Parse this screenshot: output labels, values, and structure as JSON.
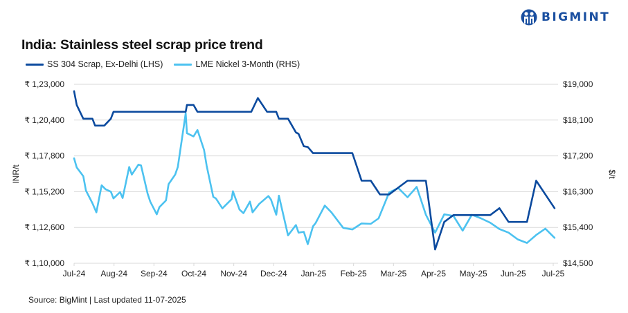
{
  "logo": {
    "text": "BIGMINT",
    "color": "#1a4fa0"
  },
  "title": "India: Stainless steel scrap price trend",
  "source": "Source: BigMint | Last updated 11-07-2025",
  "chart_data": {
    "type": "line",
    "title": "India: Stainless steel scrap price trend",
    "x_ticks": [
      "Jul-24",
      "Aug-24",
      "Sep-24",
      "Oct-24",
      "Nov-24",
      "Dec-24",
      "Jan-25",
      "Feb-25",
      "Mar-25",
      "Apr-25",
      "May-25",
      "Jun-25",
      "Jul-25"
    ],
    "x_range": [
      "2024-07-01",
      "2025-07-01"
    ],
    "y_left": {
      "label": "INR/t",
      "range": [
        110000,
        123000
      ],
      "ticks": [
        "₹ 1,10,000",
        "₹ 1,12,600",
        "₹ 1,15,200",
        "₹ 1,17,800",
        "₹ 1,20,400",
        "₹ 1,23,000"
      ]
    },
    "y_right": {
      "label": "$/t",
      "range": [
        14500,
        19000
      ],
      "ticks": [
        "$14,500",
        "$15,400",
        "$16,300",
        "$17,200",
        "$18,100",
        "$19,000"
      ]
    },
    "grid": true,
    "legend_position": "top-left",
    "series": [
      {
        "name": "SS 304 Scrap, Ex-Delhi (LHS)",
        "axis": "left",
        "color": "#0b4a9e",
        "points": [
          [
            "2024-07-01",
            122500
          ],
          [
            "2024-07-03",
            121500
          ],
          [
            "2024-07-08",
            120500
          ],
          [
            "2024-07-15",
            120500
          ],
          [
            "2024-07-17",
            120000
          ],
          [
            "2024-07-24",
            120000
          ],
          [
            "2024-07-29",
            120500
          ],
          [
            "2024-07-31",
            121000
          ],
          [
            "2024-09-24",
            121000
          ],
          [
            "2024-09-25",
            121500
          ],
          [
            "2024-09-30",
            121500
          ],
          [
            "2024-10-03",
            121000
          ],
          [
            "2024-11-13",
            121000
          ],
          [
            "2024-11-18",
            122000
          ],
          [
            "2024-11-25",
            121000
          ],
          [
            "2024-12-02",
            121000
          ],
          [
            "2024-12-04",
            120500
          ],
          [
            "2024-12-11",
            120500
          ],
          [
            "2024-12-17",
            119500
          ],
          [
            "2024-12-19",
            119400
          ],
          [
            "2024-12-23",
            118500
          ],
          [
            "2024-12-26",
            118450
          ],
          [
            "2024-12-30",
            118000
          ],
          [
            "2025-01-29",
            118000
          ],
          [
            "2025-02-05",
            116000
          ],
          [
            "2025-02-12",
            116000
          ],
          [
            "2025-02-19",
            115000
          ],
          [
            "2025-02-26",
            115000
          ],
          [
            "2025-03-12",
            116000
          ],
          [
            "2025-03-26",
            116000
          ],
          [
            "2025-04-02",
            111000
          ],
          [
            "2025-04-09",
            113000
          ],
          [
            "2025-04-16",
            113500
          ],
          [
            "2025-05-14",
            113500
          ],
          [
            "2025-05-21",
            114000
          ],
          [
            "2025-05-28",
            113000
          ],
          [
            "2025-06-11",
            113000
          ],
          [
            "2025-06-18",
            116000
          ],
          [
            "2025-07-02",
            114000
          ]
        ]
      },
      {
        "name": "LME Nickel 3-Month (RHS)",
        "axis": "right",
        "color": "#4cc2f0",
        "points": [
          [
            "2024-07-01",
            17140
          ],
          [
            "2024-07-03",
            16910
          ],
          [
            "2024-07-08",
            16690
          ],
          [
            "2024-07-10",
            16330
          ],
          [
            "2024-07-15",
            16010
          ],
          [
            "2024-07-18",
            15780
          ],
          [
            "2024-07-22",
            16460
          ],
          [
            "2024-07-25",
            16360
          ],
          [
            "2024-07-29",
            16300
          ],
          [
            "2024-07-31",
            16130
          ],
          [
            "2024-08-05",
            16290
          ],
          [
            "2024-08-07",
            16140
          ],
          [
            "2024-08-12",
            16920
          ],
          [
            "2024-08-14",
            16730
          ],
          [
            "2024-08-19",
            16980
          ],
          [
            "2024-08-21",
            16960
          ],
          [
            "2024-08-26",
            16250
          ],
          [
            "2024-08-28",
            16050
          ],
          [
            "2024-09-02",
            15730
          ],
          [
            "2024-09-04",
            15910
          ],
          [
            "2024-09-09",
            16080
          ],
          [
            "2024-09-11",
            16490
          ],
          [
            "2024-09-16",
            16730
          ],
          [
            "2024-09-18",
            16920
          ],
          [
            "2024-09-24",
            18270
          ],
          [
            "2024-09-25",
            17770
          ],
          [
            "2024-09-30",
            17690
          ],
          [
            "2024-10-03",
            17850
          ],
          [
            "2024-10-08",
            17350
          ],
          [
            "2024-10-10",
            16950
          ],
          [
            "2024-10-15",
            16170
          ],
          [
            "2024-10-17",
            16130
          ],
          [
            "2024-10-22",
            15880
          ],
          [
            "2024-10-29",
            16110
          ],
          [
            "2024-10-30",
            16310
          ],
          [
            "2024-11-04",
            15850
          ],
          [
            "2024-11-07",
            15760
          ],
          [
            "2024-11-12",
            16050
          ],
          [
            "2024-11-14",
            15780
          ],
          [
            "2024-11-19",
            15990
          ],
          [
            "2024-11-26",
            16190
          ],
          [
            "2024-11-28",
            16100
          ],
          [
            "2024-12-02",
            15720
          ],
          [
            "2024-12-04",
            16200
          ],
          [
            "2024-12-11",
            15200
          ],
          [
            "2024-12-17",
            15460
          ],
          [
            "2024-12-19",
            15270
          ],
          [
            "2024-12-23",
            15290
          ],
          [
            "2024-12-26",
            14980
          ],
          [
            "2024-12-30",
            15430
          ],
          [
            "2025-01-01",
            15510
          ],
          [
            "2025-01-08",
            15950
          ],
          [
            "2025-01-13",
            15780
          ],
          [
            "2025-01-22",
            15390
          ],
          [
            "2025-01-29",
            15350
          ],
          [
            "2025-02-05",
            15500
          ],
          [
            "2025-02-12",
            15490
          ],
          [
            "2025-02-18",
            15630
          ],
          [
            "2025-02-26",
            16280
          ],
          [
            "2025-03-05",
            16390
          ],
          [
            "2025-03-12",
            16160
          ],
          [
            "2025-03-19",
            16420
          ],
          [
            "2025-03-26",
            15720
          ],
          [
            "2025-04-02",
            15270
          ],
          [
            "2025-04-09",
            15730
          ],
          [
            "2025-04-16",
            15690
          ],
          [
            "2025-04-23",
            15320
          ],
          [
            "2025-04-30",
            15720
          ],
          [
            "2025-05-07",
            15630
          ],
          [
            "2025-05-14",
            15520
          ],
          [
            "2025-05-21",
            15360
          ],
          [
            "2025-05-28",
            15270
          ],
          [
            "2025-06-04",
            15100
          ],
          [
            "2025-06-11",
            15010
          ],
          [
            "2025-06-18",
            15210
          ],
          [
            "2025-06-25",
            15370
          ],
          [
            "2025-07-02",
            15140
          ]
        ]
      }
    ]
  }
}
